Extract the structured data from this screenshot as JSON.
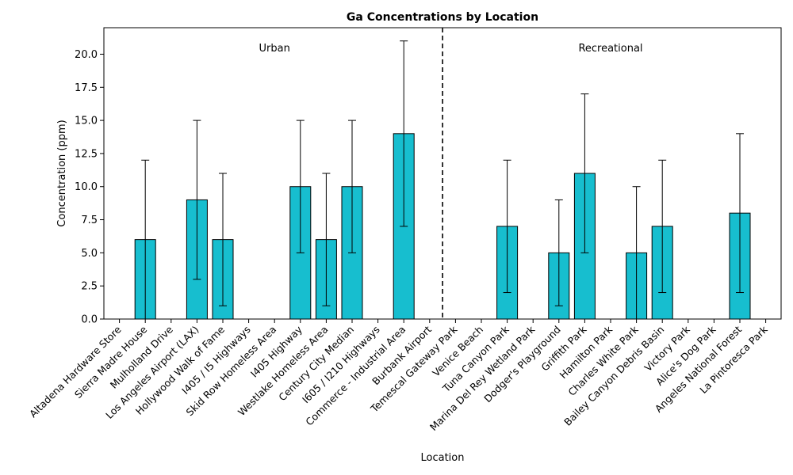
{
  "chart_data": {
    "type": "bar",
    "title": "Ga Concentrations by Location",
    "xlabel": "Location",
    "ylabel": "Concentration (ppm)",
    "ylim": [
      0,
      22
    ],
    "yticks": [
      "0.0",
      "2.5",
      "5.0",
      "7.5",
      "10.0",
      "12.5",
      "15.0",
      "17.5",
      "20.0"
    ],
    "grid": false,
    "bar_color": "#17becf",
    "edge_color": "#000000",
    "categories": [
      "Altadena Hardware Store",
      "Sierra Madre House",
      "Mulholland Drive",
      "Los Angeles Airport (LAX)",
      "Hollywood Walk of Fame",
      "I405 / I5 Highways",
      "Skid Row Homeless Area",
      "I405 Highway",
      "Westlake Homeless Area",
      "Century City Median",
      "I605 / I210 Highways",
      "Commerce - Industrial Area",
      "Burbank Airport",
      "Temescal Gateway Park",
      "Venice Beach",
      "Tuna Canyon Park",
      "Marina Del Rey Wetland Park",
      "Dodger's Playground",
      "Griffith Park",
      "Hamilton Park",
      "Charles White Park",
      "Bailey Canyon Debris Basin",
      "Victory Park",
      "Alice's Dog Park",
      "Angeles National Forest",
      "La Pintoresca Park"
    ],
    "values": [
      null,
      6,
      null,
      9,
      6,
      null,
      null,
      10,
      6,
      10,
      null,
      14,
      null,
      null,
      null,
      7,
      null,
      5,
      11,
      null,
      5,
      7,
      null,
      null,
      8,
      null
    ],
    "error_low": [
      null,
      0,
      null,
      3,
      1,
      null,
      null,
      5,
      1,
      5,
      null,
      7,
      null,
      null,
      null,
      2,
      null,
      1,
      5,
      null,
      0,
      2,
      null,
      null,
      2,
      null
    ],
    "error_high": [
      null,
      12,
      null,
      15,
      11,
      null,
      null,
      15,
      11,
      15,
      null,
      21,
      null,
      null,
      null,
      12,
      null,
      9,
      17,
      null,
      10,
      12,
      null,
      null,
      14,
      null
    ],
    "groups": [
      {
        "label": "Urban",
        "start": 0,
        "end": 12
      },
      {
        "label": "Recreational",
        "start": 13,
        "end": 25
      }
    ],
    "divider_style": "dashed"
  }
}
